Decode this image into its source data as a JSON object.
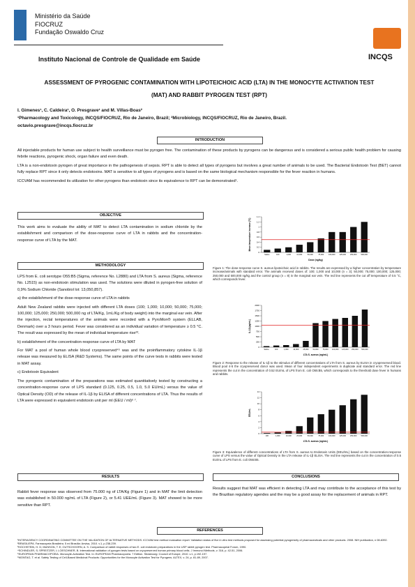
{
  "header": {
    "ministry": "Ministério da Saúde",
    "fiocruz": "FIOCRUZ",
    "foundation": "Fundação Oswaldo Cruz",
    "institute": "Instituto Nacional de Controle de Qualidade em Saúde",
    "logo": "INCQS"
  },
  "title": "ASSESSMENT OF PYROGENIC CONTAMINATION WITH LIPOTEICHOIC ACID (LTA) IN THE MONOCYTE ACTIVATION TEST (MAT) AND RABBIT PYROGEN TEST (RPT)",
  "authors": "I. Gimenes¹, C. Caldeira¹, O. Presgrave¹ and M. Villas-Boas²",
  "affiliations": "¹Pharmacology and Toxicology, INCQS/FIOCRUZ, Rio de Janeiro, Brazil; ²Microbiology, INCQS/FIOCRUZ, Rio de Janeiro, Brazil.",
  "email": "octavio.presgrave@incqs.fiocruz.br",
  "introduction": {
    "heading": "INTRODUCTION",
    "paragraphs": [
      "All injectable products for human use subject to health surveillance must be pyrogen free. The contamination of these products by pyrogens can be dangerous and is considered a serious public health problem for causing febrile reactions, pyrogenic shock, organ failure and even death.",
      "LTA is a non-endotoxin pyrogen of great importance in the pathogenesis of sepsis. RPT is able to detect all types of pyrogens but involves a great number of animals to be used. The Bacterial Endotoxin Test (BET) cannot fully replace RPT since it only detects endotoxins. MAT is sensitive to all types of pyrogens and is based on the same biological mechanism responsible for the fever reaction in humans.",
      "ICCVAM has recommended its utilization for other pyrogens than endotoxin since its equivalence to RPT can be demonstrated¹."
    ]
  },
  "objective": {
    "heading": "OBJECTIVE",
    "paragraphs": [
      "This work aims to evaluate the ability of MAT to detect LTA contamination in sodium chloride by the establishment and comparison of the dose-response curve of LTA in rabbits and the concentration-response curve of LTA by the MAT."
    ]
  },
  "methodology": {
    "heading": "METHODOLOGY",
    "paragraphs": [
      "LPS from E. coli serotype O55:B5 (Sigma, reference No. L2880) and LTA from S. aureus (Sigma, reference No. L2515) as non-endotoxin stimulation was used. The solutions were diluted in pyrogen-free solution of 0,9% Sodium Chloride (Sanobiol lot: 13,050,857).",
      "a) the establishment of the dose-response curve of LTA in rabbits",
      "Adult New Zealand rabbits were injected with different LTA doses (100; 1,000; 10,000; 50,000; 75,000; 100,000; 125,000; 250,000; 500,000 ng of LTA/Kg, 1mL/Kg of body weight) into the marginal ear vein. After the injection, rectal temperatures of the animals were recorded with a PyroMon® system (ELLAB, Denmark) over a 3 hours period. Fever was considered as an individual variation of temperature ≥ 0.5 °C. The result was expressed by the mean of individual temperature rise²³.",
      "b) establishment of the concentration-response curve of LTA by MAT",
      "For MAT a pool of human whole blood cryopreserved⁴⁵ was and the proinflammatory cytokine IL-1β release was measured by ELISA (R&D Systems). The same points of the curve tests in rabbits were tested in MAT assay.",
      "c) Endotoxin Equivalent",
      "The pyrogenic contamination of the preparations was estimated quantitatively tested by constructing a concentration-response curve of LPS standard (0.125, 0.25, 0.5, 1.0, 5.0 EU/mL) versus the value of Optical Density (OD) of the release of IL-1β by ELISA of different concentrations of LTA. Thus the results of LTA were expressed in equivalent endotoxin unit per ml (EEU / ml)⁶ ⁷."
    ]
  },
  "results": {
    "heading": "RESULTS",
    "paragraphs": [
      "Rabbit fever response was observed from 75.000 ng of LTA/Kg (Figure 1) and in MAT the limit detection was established in 50.000 ng/mL of LTA (Figure 2), or 5.41 UEE/mL (Figure 3). MAT showed to be more sensitive than RPT."
    ]
  },
  "conclusions": {
    "heading": "CONCLUSIONS",
    "paragraphs": [
      "Results suggest that MAT was efficient in detecting LTA and may contribute to the acceptance of this test by the Brazilian regulatory agendes and the may be a good assay for the replacement of animals in RPT."
    ]
  },
  "references": {
    "heading": "REFERENCES",
    "items": [
      "¹INTERAGENCY COORDINATING COMMITTEE ON THE VALIDATION OF ALTERNATIVE METHODS. ICCVAM test method evaluation report: Validation status of five in vitro test methods proposed for assessing potential pyrogenicity of pharmaceuticals and other products. 2008. NIH publication, n 08-6392.",
      "²BRASIL/EPA. Farmacopeia Brasileira. 5 ed Brasília: Anvisa, 2010. v.1, p.238-239.",
      "³HOCHSTEIN, H. D; MUNSON, T. E; OUTSCHOORN, A. S. Comparison of rabbit responses of two E. coli endotoxin preparations in the USP rabbit pyrogen test. Pharmacopeial Forum, 1990.",
      "⁴SCHINDLER, S; SPREITZER, I; LOESCHNER, B. International validation of pyrogen tests based on cryopreserved human primary blood cells. J Immunol Methods, v. 316, p. 42-51, 2006.",
      "⁵EUROPEAN PHARMACOPOEIA. Monocyte-Activation Test. In: EUROPEAN Pharmacopoeia. 7 Edition. Strasbourg: Council of Europe, 2010. v.1, p.192-197.",
      "⁶MONTAG, T. et al. Safety Testing of Cell-Based Medicinal Products: Opportunities for the Monocyte Activation Test for Pyrogens. ALTEX, v. 24, p. 81-89, 2007."
    ]
  },
  "figures": [
    {
      "caption": "Figure 1: The dose-response curve S. aureus lipoteichoic acid in rabbits. The results are expressed by a higher concentration by temperature increase/animals with standard error. The animals received doses of: 100; 1,000 and 10,000 (n = 3); 50,000; 75,000; 100,000; 125,000; 250,000 and 500,000 ng/kg and the control group (n = 8) in the marginal ear vein. The red line represents the cut off temperature of 0.5 °C, which corresponds fever.",
      "chart": {
        "type": "bar",
        "y_label": "Mean temperature increase (°C)",
        "x_label": "Dose (ng/kg)",
        "categories": [
          "Saline",
          "100",
          "1,000",
          "10,000",
          "50,000",
          "75,000",
          "100,000",
          "125,000",
          "250,000",
          "500,000"
        ],
        "values": [
          0.1,
          0.15,
          0.2,
          0.3,
          0.4,
          0.55,
          0.8,
          0.8,
          1.0,
          1.2
        ],
        "color": "#111111",
        "ylim": [
          0,
          1.4
        ],
        "yticks": [
          0,
          0.2,
          0.4,
          0.6,
          0.8,
          1,
          1.2,
          1.4
        ],
        "threshold": 0.5,
        "threshold_color": "#e02020"
      }
    },
    {
      "caption": "Figure 2: Response to the release of IL-1β to the stimulus of different concentrations of LTA from S. aureus by ELISA in cryopreserved blood. Blood pool 4-5 the cryopreserved donor was used. Mean of four independent experiments in duplicate and standard error. The red line represents the cut in the concentration of 0.52 EU/mL of LPS from E. coli O55:B5, which corresponds to the threshold dose fever in humans and rabbits.",
      "chart": {
        "type": "bar",
        "y_label": "IL-1β (pg/mL)",
        "x_label": "LTA S. aureus (ng/mL)",
        "categories": [
          "Saline",
          "100",
          "1,000",
          "10,000",
          "25,000",
          "50,000",
          "75,000",
          "100,000",
          "125,000",
          "250,000",
          "500,000"
        ],
        "values": [
          50,
          80,
          100,
          150,
          300,
          1150,
          1250,
          1350,
          1400,
          1500,
          1800
        ],
        "color": "#111111",
        "ylim": [
          0,
          2000
        ],
        "yticks": [
          0,
          250,
          500,
          750,
          1000,
          1250,
          1500,
          1750,
          2000
        ],
        "threshold": 1050,
        "threshold_color": "#e02020"
      }
    },
    {
      "caption": "Figure 3: Equivalence of different concentrations of LTA from S. aureus to Endotoxin Units (EEU/mL) based on the concentration-response curve of LPS versus the value of Optical Density in the LTA release of IL-1β ELISA. The red line represents the cut in the concentration of 0.5 EU/mL of LPS from E. coli O55:B5.",
      "chart": {
        "type": "bar",
        "y_label": "EEU/mL",
        "x_label": "LTA S. aureus (ng/mL)",
        "categories": [
          "100",
          "1,000",
          "10,000",
          "25,000",
          "50,000",
          "75,000",
          "100,000",
          "125,000",
          "250,000",
          "500,000"
        ],
        "values": [
          0.2,
          0.4,
          0.9,
          2.5,
          5.41,
          6.5,
          8,
          9.5,
          11.5,
          13
        ],
        "color": "#111111",
        "ylim": [
          0,
          14
        ],
        "yticks": [
          0,
          2,
          4,
          6,
          8,
          10,
          12,
          14
        ],
        "threshold": 0.5,
        "threshold_color": "#e02020"
      }
    }
  ]
}
